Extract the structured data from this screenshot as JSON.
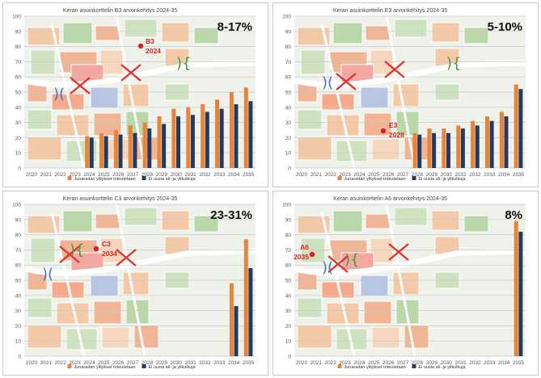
{
  "colors": {
    "series_a": "#e8833a",
    "series_b": "#253a5e",
    "grid": "#c9c9c9",
    "axis_text": "#555555",
    "marker_red": "#d92020",
    "cross_red": "#e0302a",
    "bridge_blue": "#4a6fb5",
    "bridge_green": "#3f9a3a"
  },
  "chart_data": [
    {
      "type": "bar",
      "title": "Keran asuinkorttelin B3 arvonkehitys 2024-35",
      "percent_label": "8-17%",
      "marker_label": [
        "B3",
        "2024"
      ],
      "ylim": [
        0,
        100
      ],
      "yticks": [
        0,
        10,
        20,
        30,
        40,
        50,
        60,
        70,
        80,
        90,
        100
      ],
      "categories": [
        "2020",
        "2021",
        "2022",
        "2023",
        "2024",
        "2025",
        "2026",
        "2027",
        "2028",
        "2029",
        "2030",
        "2031",
        "2032",
        "2033",
        "2034",
        "2035"
      ],
      "series": [
        {
          "name": "Junaradan ylitykset toteutetaan",
          "values": [
            null,
            null,
            null,
            null,
            21,
            23,
            25,
            28,
            30,
            34,
            39,
            40,
            42,
            45,
            50,
            53
          ]
        },
        {
          "name": "Ei uusia ali- ja ylikulkuja",
          "values": [
            null,
            null,
            null,
            null,
            20,
            21,
            22,
            23,
            26,
            29,
            34,
            35,
            37,
            39,
            42,
            44
          ]
        }
      ],
      "legend": "bottom"
    },
    {
      "type": "bar",
      "title": "Keran asuinkorttelin E3 arvonkehitys 2024-35",
      "percent_label": "5-10%",
      "marker_label": [
        "E3",
        "2028"
      ],
      "ylim": [
        0,
        100
      ],
      "yticks": [
        0,
        10,
        20,
        30,
        40,
        50,
        60,
        70,
        80,
        90,
        100
      ],
      "categories": [
        "2020",
        "2021",
        "2022",
        "2023",
        "2024",
        "2025",
        "2026",
        "2027",
        "2028",
        "2029",
        "2030",
        "2031",
        "2032",
        "2033",
        "2034",
        "2035"
      ],
      "series": [
        {
          "name": "Junaradan ylitykset toteutetaan",
          "values": [
            null,
            null,
            null,
            null,
            null,
            null,
            null,
            null,
            23,
            26,
            26,
            28,
            31,
            34,
            37,
            55
          ]
        },
        {
          "name": "Ei uusia ali- ja ylikulkuja",
          "values": [
            null,
            null,
            null,
            null,
            null,
            null,
            null,
            null,
            22,
            23,
            23,
            26,
            28,
            31,
            34,
            52
          ]
        }
      ],
      "legend": "bottom"
    },
    {
      "type": "bar",
      "title": "Keran asuinkorttelin C3 arvonkehitys 2024-35",
      "percent_label": "23-31%",
      "marker_label": [
        "C3",
        "2034"
      ],
      "ylim": [
        0,
        100
      ],
      "yticks": [
        0,
        10,
        20,
        30,
        40,
        50,
        60,
        70,
        80,
        90,
        100
      ],
      "categories": [
        "2020",
        "2021",
        "2022",
        "2023",
        "2024",
        "2025",
        "2026",
        "2027",
        "2028",
        "2029",
        "2030",
        "2031",
        "2032",
        "2033",
        "2034",
        "2035"
      ],
      "series": [
        {
          "name": "Junaradan ylitykset toteutetaan",
          "values": [
            null,
            null,
            null,
            null,
            null,
            null,
            null,
            null,
            null,
            null,
            null,
            null,
            null,
            null,
            48,
            77
          ]
        },
        {
          "name": "Ei uusia ali- ja ylikulkuja",
          "values": [
            null,
            null,
            null,
            null,
            null,
            null,
            null,
            null,
            null,
            null,
            null,
            null,
            null,
            null,
            33,
            58
          ]
        }
      ],
      "legend": "bottom"
    },
    {
      "type": "bar",
      "title": "Keran asuinkorttelin A6 arvonkehitys 2024-35",
      "percent_label": "8%",
      "marker_label": [
        "A6",
        "2035"
      ],
      "ylim": [
        0,
        100
      ],
      "yticks": [
        0,
        10,
        20,
        30,
        40,
        50,
        60,
        70,
        80,
        90,
        100
      ],
      "categories": [
        "2020",
        "2021",
        "2022",
        "2023",
        "2024",
        "2025",
        "2026",
        "2027",
        "2028",
        "2029",
        "2030",
        "2031",
        "2032",
        "2033",
        "2034",
        "2035"
      ],
      "series": [
        {
          "name": "Junaradan ylitykset toteutetaan",
          "values": [
            null,
            null,
            null,
            null,
            null,
            null,
            null,
            null,
            null,
            null,
            null,
            null,
            null,
            null,
            null,
            89
          ]
        },
        {
          "name": "Ei uusia ali- ja ylikulkuja",
          "values": [
            null,
            null,
            null,
            null,
            null,
            null,
            null,
            null,
            null,
            null,
            null,
            null,
            null,
            null,
            null,
            82
          ]
        }
      ],
      "legend": "bottom"
    }
  ]
}
